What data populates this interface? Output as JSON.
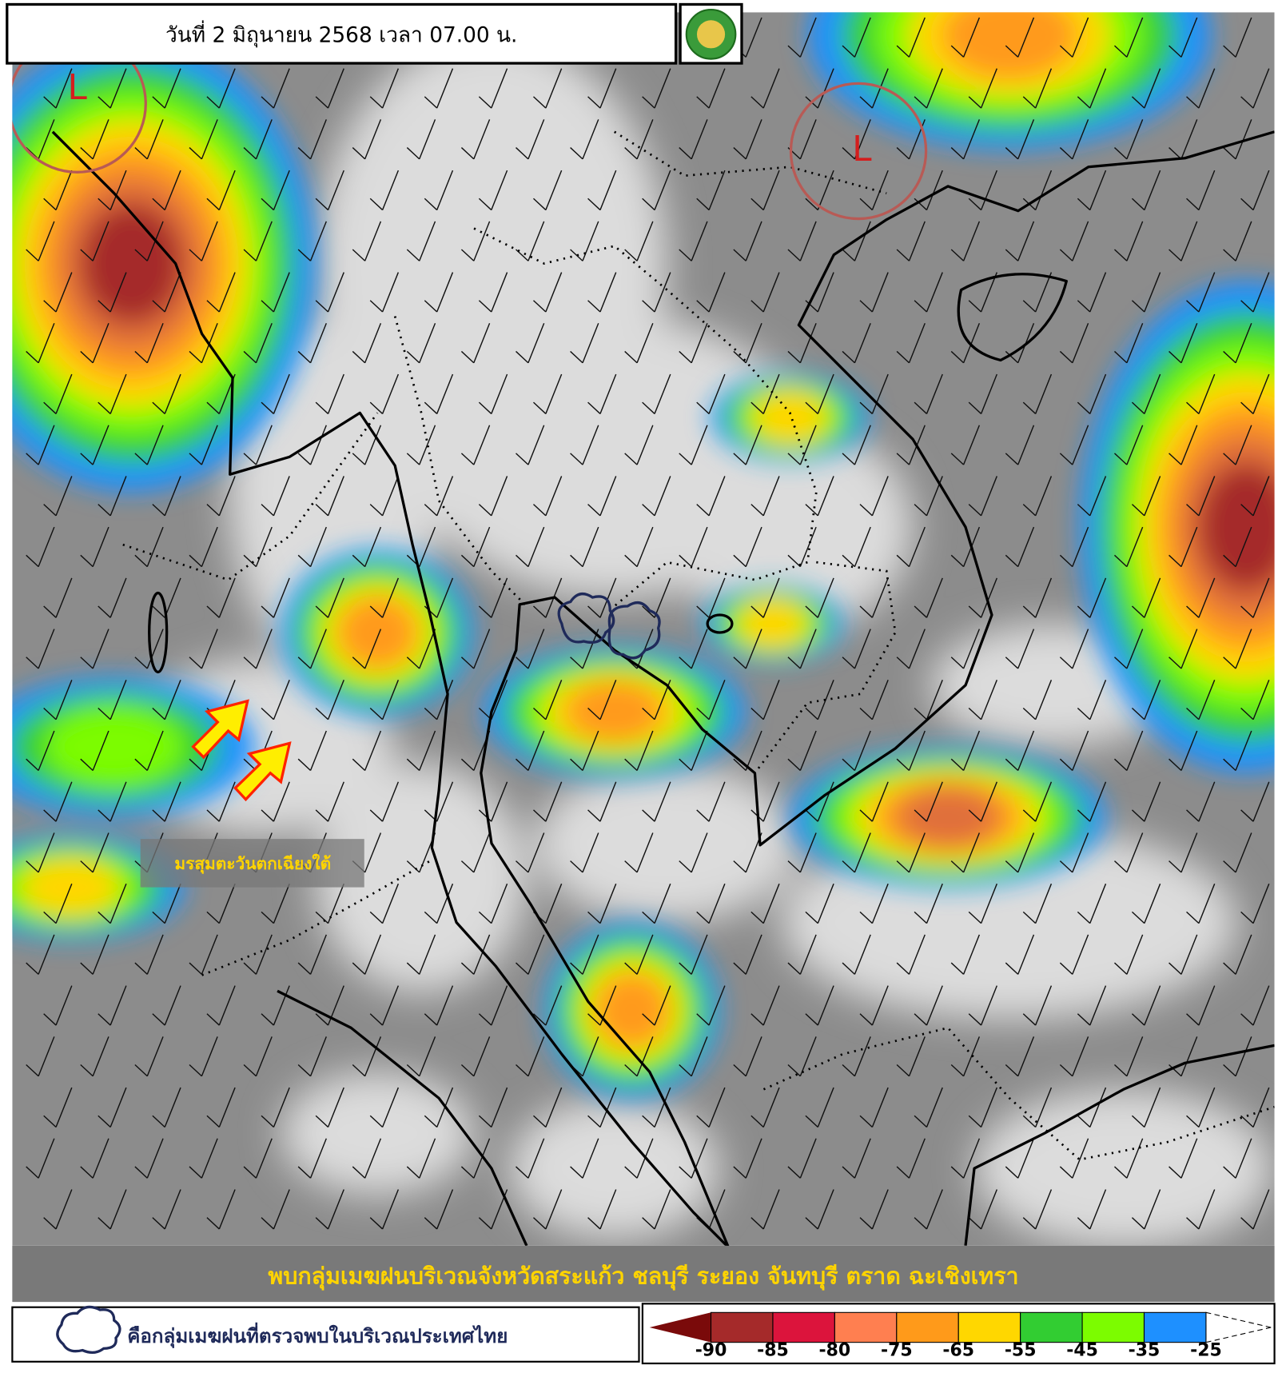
{
  "header": {
    "title": "วันที่ 2 มิถุนายน 2568 เวลา 07.00 น."
  },
  "map": {
    "low_pressure_labels": [
      "L",
      "L"
    ],
    "monsoon_label": "มรสุมตะวันตกเฉียงใต้",
    "caption": "พบกลุ่มเมฆฝนบริเวณจังหวัดสระแก้ว ชลบุรี ระยอง จันทบุรี ตราด ฉะเชิงเทรา"
  },
  "legend": {
    "cloud_text": "คือกลุ่มเมฆฝนที่ตรวจพบในบริเวณประเทศไทย"
  },
  "colorbar": {
    "labels": [
      "-90",
      "-85",
      "-80",
      "-75",
      "-65",
      "-55",
      "-45",
      "-35",
      "-25"
    ],
    "colors": [
      "#a52a2a",
      "#dc143c",
      "#ff7f50",
      "#ff9a1a",
      "#ffd700",
      "#32cd32",
      "#7cfc00",
      "#1e90ff"
    ]
  }
}
